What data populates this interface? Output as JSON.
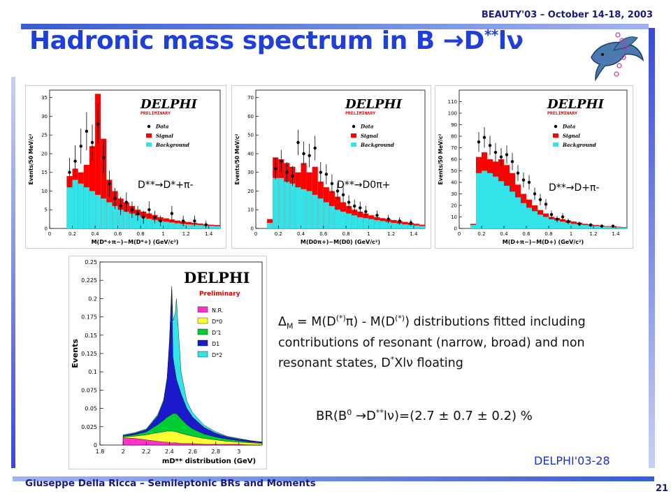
{
  "header": {
    "conference": "BEAUTY'03 – October 14-18, 2003",
    "title_main": "Hadronic mass spectrum in B ",
    "title_arrow": "→",
    "title_particle": "D",
    "title_sup": "**",
    "title_rest": "lν"
  },
  "footer": {
    "author": "Giuseppe Della Ricca – Semileptonic BRs and Moments",
    "page": "21"
  },
  "colors": {
    "signal": "#ff0000",
    "background": "#33e3e8",
    "accent": "#1f3fd8"
  },
  "text": {
    "delta": "Δ",
    "delta_sub": "M",
    "eq_a": " =  M(D",
    "sup_star": "(*)",
    "eq_pi": "π",
    "eq_b": ") - M(D",
    "eq_c": ")  distributions fitted including contributions of resonant (narrow, broad) and non resonant states,  D",
    "star": "*",
    "eq_d": "Xlν  floating",
    "br_a": "BR(B",
    "br_zero": "0",
    "br_arrow": " →D",
    "br_stars": "**",
    "br_b": "lν)=(2.7 ± 0.7 ± 0.2) %",
    "reference": "DELPHI'03-28"
  },
  "chart_data": [
    {
      "type": "bar",
      "panel": "D**→D*+π-",
      "decay_label": "D**→D*+π-",
      "logo": "DELPHI",
      "logo_sub": "PRELIMINARY",
      "legend": [
        "Data",
        "Signal",
        "Background"
      ],
      "xlabel": "M(D*+π−)−M(D*+) (GeV/c²)",
      "ylabel": "Events/50 MeV/c²",
      "xlim": [
        0,
        1.5
      ],
      "ylim": [
        0,
        37
      ],
      "xticks": [
        0,
        0.2,
        0.4,
        0.6,
        0.8,
        1,
        1.2,
        1.4
      ],
      "yticks": [
        0,
        5,
        10,
        15,
        20,
        25,
        30,
        35
      ],
      "bins": [
        0.15,
        0.2,
        0.25,
        0.3,
        0.35,
        0.4,
        0.45,
        0.5,
        0.55,
        0.6,
        0.65,
        0.7,
        0.75,
        0.8,
        0.85,
        0.9,
        0.95,
        1.0,
        1.05,
        1.1,
        1.15,
        1.2,
        1.25,
        1.3,
        1.35,
        1.4,
        1.45,
        1.5
      ],
      "background": [
        11,
        13,
        12,
        11,
        10,
        9,
        8,
        7,
        6,
        5,
        4.5,
        4,
        3.5,
        3,
        2.6,
        2.3,
        2,
        1.8,
        1.6,
        1.4,
        1.2,
        1.1,
        1,
        0.9,
        0.8,
        0.7,
        0.6
      ],
      "total": [
        14,
        16,
        15,
        17,
        22,
        36,
        24,
        13,
        10,
        8,
        7,
        6,
        5,
        4.5,
        4,
        3.6,
        3,
        2.7,
        2.4,
        2.1,
        1.9,
        1.7,
        1.5,
        1.3,
        1.1,
        1,
        0.9
      ],
      "data_x": [
        0.175,
        0.225,
        0.275,
        0.325,
        0.375,
        0.425,
        0.475,
        0.525,
        0.575,
        0.625,
        0.675,
        0.725,
        0.775,
        0.825,
        0.875,
        0.925,
        0.975,
        1.075,
        1.175,
        1.275,
        1.375
      ],
      "data_y": [
        15,
        18,
        22,
        26,
        23,
        28,
        19,
        12,
        8,
        6,
        7,
        5,
        4,
        3,
        5,
        3,
        2,
        4,
        2,
        2,
        1
      ]
    },
    {
      "type": "bar",
      "panel": "D**→D0π+",
      "decay_label": "D**→D0π+",
      "logo": "DELPHI",
      "logo_sub": "PRELIMINARY",
      "legend": [
        "Data",
        "Signal",
        "Background"
      ],
      "xlabel": "M(D0π+)−M(D0) (GeV/c²)",
      "ylabel": "Events/50 MeV/c²",
      "xlim": [
        0,
        1.5
      ],
      "ylim": [
        0,
        74
      ],
      "xticks": [
        0,
        0.2,
        0.4,
        0.6,
        0.8,
        1,
        1.2,
        1.4
      ],
      "yticks": [
        0,
        10,
        20,
        30,
        40,
        50,
        60,
        70
      ],
      "bins": [
        0.1,
        0.15,
        0.2,
        0.25,
        0.3,
        0.35,
        0.4,
        0.45,
        0.5,
        0.55,
        0.6,
        0.65,
        0.7,
        0.75,
        0.8,
        0.85,
        0.9,
        0.95,
        1.0,
        1.05,
        1.1,
        1.15,
        1.2,
        1.25,
        1.3,
        1.35,
        1.4,
        1.45,
        1.5
      ],
      "background": [
        3,
        27,
        27,
        25,
        24,
        22,
        21,
        20,
        18,
        16,
        14,
        12,
        10,
        9,
        8,
        7,
        6,
        5.5,
        5,
        4.5,
        4,
        3.5,
        3,
        2.6,
        2.2,
        1.9,
        1.6,
        1.3
      ],
      "total": [
        5,
        38,
        37,
        35,
        33,
        30,
        35,
        30,
        33,
        25,
        22,
        20,
        17,
        14,
        12,
        10,
        9,
        8,
        7,
        6,
        5.5,
        5,
        4.5,
        4,
        3.5,
        3,
        2.5,
        2
      ],
      "data_x": [
        0.175,
        0.225,
        0.275,
        0.325,
        0.375,
        0.425,
        0.475,
        0.525,
        0.575,
        0.625,
        0.675,
        0.725,
        0.775,
        0.825,
        0.875,
        0.925,
        0.975,
        1.075,
        1.175,
        1.275,
        1.375
      ],
      "data_y": [
        32,
        36,
        30,
        28,
        46,
        40,
        39,
        43,
        30,
        29,
        24,
        20,
        18,
        14,
        12,
        11,
        9,
        7,
        5,
        4,
        3
      ]
    },
    {
      "type": "bar",
      "panel": "D**→D+π-",
      "decay_label": "D**→D+π-",
      "logo": "DELPHI",
      "logo_sub": "PRELIMINARY",
      "legend": [
        "Data",
        "Signal",
        "Background"
      ],
      "xlabel": "M(D+π−)−M(D+) (GeV/c²)",
      "ylabel": "Events/50 MeV/c²",
      "xlim": [
        0,
        1.5
      ],
      "ylim": [
        0,
        120
      ],
      "xticks": [
        0,
        0.2,
        0.4,
        0.6,
        0.8,
        1,
        1.2,
        1.4
      ],
      "yticks": [
        0,
        10,
        20,
        30,
        40,
        50,
        60,
        70,
        80,
        90,
        100,
        110
      ],
      "bins": [
        0.1,
        0.15,
        0.2,
        0.25,
        0.3,
        0.35,
        0.4,
        0.45,
        0.5,
        0.55,
        0.6,
        0.65,
        0.7,
        0.75,
        0.8,
        0.85,
        0.9,
        0.95,
        1.0,
        1.05,
        1.1,
        1.15,
        1.2,
        1.25,
        1.3,
        1.35,
        1.4,
        1.45,
        1.5
      ],
      "background": [
        3,
        48,
        50,
        48,
        45,
        41,
        37,
        32,
        27,
        22,
        18,
        15,
        12,
        10,
        8,
        7,
        6,
        5,
        4,
        3.5,
        3,
        2.6,
        2.2,
        1.8,
        1.5,
        1.2,
        1,
        0.8
      ],
      "total": [
        4,
        62,
        66,
        60,
        58,
        60,
        55,
        48,
        38,
        30,
        25,
        20,
        16,
        13,
        10,
        9,
        8,
        7,
        6,
        5,
        4,
        3.5,
        3,
        2.5,
        2,
        1.8,
        1.5,
        1.2
      ],
      "data_x": [
        0.175,
        0.225,
        0.275,
        0.325,
        0.375,
        0.425,
        0.475,
        0.525,
        0.575,
        0.625,
        0.675,
        0.725,
        0.775,
        0.825,
        0.875,
        0.925,
        0.975,
        1.075,
        1.175,
        1.275,
        1.375
      ],
      "data_y": [
        75,
        79,
        72,
        66,
        62,
        64,
        58,
        48,
        42,
        40,
        30,
        25,
        21,
        12,
        8,
        10,
        6,
        4,
        3,
        2,
        2
      ]
    },
    {
      "type": "area",
      "panel": "mD** distribution",
      "logo": "DELPHI",
      "logo_sub": "Preliminary",
      "xlabel": "mD** distribution (GeV)",
      "ylabel": "Events",
      "xlim": [
        1.8,
        3.2
      ],
      "ylim": [
        0,
        0.25
      ],
      "xticks": [
        1.8,
        2,
        2.2,
        2.4,
        2.6,
        2.8,
        3
      ],
      "yticks": [
        0,
        0.025,
        0.05,
        0.075,
        0.1,
        0.125,
        0.15,
        0.175,
        0.2,
        0.225,
        0.25
      ],
      "legend": [
        "N.R.",
        "D*0",
        "D'1",
        "D1",
        "D*2"
      ],
      "colors": [
        "#ff33cc",
        "#ffff33",
        "#00cc33",
        "#1a1acc",
        "#33e3e8"
      ],
      "x": [
        2.0,
        2.1,
        2.2,
        2.3,
        2.35,
        2.38,
        2.4,
        2.42,
        2.43,
        2.45,
        2.46,
        2.5,
        2.55,
        2.6,
        2.7,
        2.8,
        2.9,
        3.0,
        3.1,
        3.2
      ],
      "series": [
        {
          "name": "N.R.",
          "values": [
            0.01,
            0.009,
            0.007,
            0.005,
            0.004,
            0.004,
            0.003,
            0.003,
            0.003,
            0.003,
            0.003,
            0.002,
            0.002,
            0.002,
            0.001,
            0.001,
            0.001,
            0.001,
            0.0,
            0.0
          ]
        },
        {
          "name": "D*0",
          "values": [
            0.011,
            0.012,
            0.014,
            0.017,
            0.018,
            0.019,
            0.019,
            0.019,
            0.019,
            0.018,
            0.018,
            0.016,
            0.014,
            0.012,
            0.009,
            0.007,
            0.005,
            0.004,
            0.003,
            0.002
          ]
        },
        {
          "name": "D'1",
          "values": [
            0.012,
            0.014,
            0.018,
            0.028,
            0.034,
            0.038,
            0.04,
            0.042,
            0.043,
            0.043,
            0.043,
            0.036,
            0.028,
            0.022,
            0.015,
            0.011,
            0.008,
            0.006,
            0.004,
            0.003
          ]
        },
        {
          "name": "D1",
          "values": [
            0.013,
            0.016,
            0.021,
            0.04,
            0.06,
            0.09,
            0.14,
            0.215,
            0.12,
            0.1,
            0.09,
            0.07,
            0.05,
            0.038,
            0.024,
            0.016,
            0.011,
            0.008,
            0.006,
            0.004
          ]
        },
        {
          "name": "D*2",
          "values": [
            0.014,
            0.017,
            0.022,
            0.042,
            0.062,
            0.092,
            0.142,
            0.217,
            0.17,
            0.18,
            0.2,
            0.1,
            0.06,
            0.044,
            0.027,
            0.018,
            0.012,
            0.009,
            0.006,
            0.004
          ]
        }
      ]
    }
  ]
}
